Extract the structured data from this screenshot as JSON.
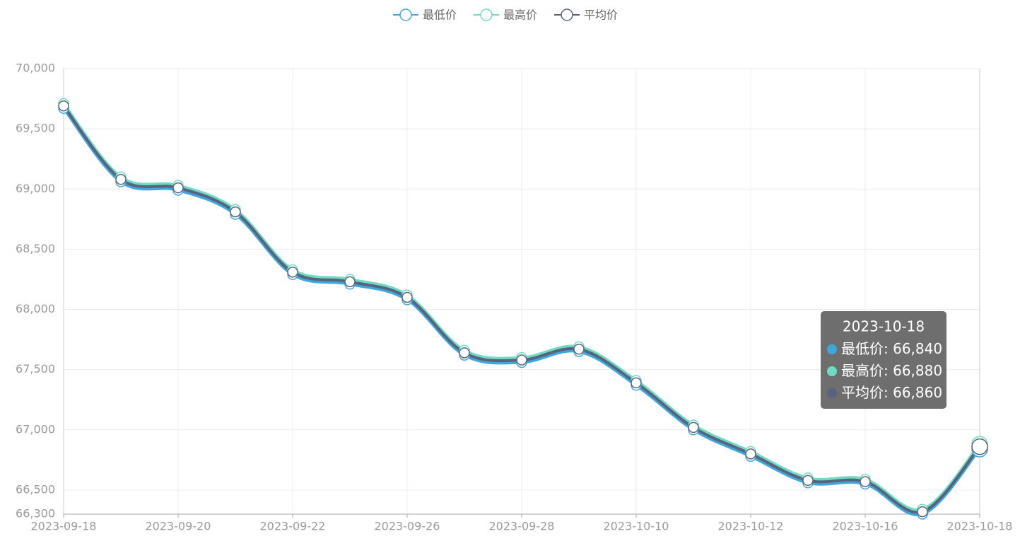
{
  "chart_data": {
    "type": "line",
    "categories": [
      "2023-09-18",
      null,
      "2023-09-20",
      null,
      "2023-09-22",
      null,
      "2023-09-26",
      null,
      "2023-09-28",
      null,
      "2023-10-10",
      null,
      "2023-10-12",
      null,
      "2023-10-16",
      null,
      "2023-10-18"
    ],
    "series": [
      {
        "name": "最低价",
        "color": "#3fa7dc",
        "values": [
          69670,
          69060,
          68990,
          68790,
          68290,
          68210,
          68080,
          67620,
          67560,
          67650,
          67370,
          67000,
          66780,
          66560,
          66550,
          66300,
          66840
        ],
        "value_labels": [
          null,
          null,
          null,
          null,
          null,
          null,
          null,
          null,
          null,
          null,
          null,
          null,
          null,
          null,
          null,
          null,
          "66,840"
        ]
      },
      {
        "name": "最高价",
        "color": "#6fdcc0",
        "values": [
          69710,
          69100,
          69030,
          68830,
          68330,
          68250,
          68120,
          67660,
          67600,
          67690,
          67410,
          67040,
          66820,
          66600,
          66590,
          66340,
          66880
        ],
        "value_labels": [
          null,
          null,
          null,
          null,
          null,
          null,
          null,
          null,
          null,
          null,
          null,
          null,
          null,
          null,
          null,
          null,
          "66,880"
        ]
      },
      {
        "name": "平均价",
        "color": "#58637f",
        "values": [
          69690,
          69080,
          69010,
          68810,
          68310,
          68230,
          68100,
          67640,
          67580,
          67670,
          67390,
          67020,
          66800,
          66580,
          66570,
          66320,
          66860
        ],
        "value_labels": [
          null,
          null,
          null,
          null,
          null,
          null,
          null,
          null,
          null,
          null,
          null,
          null,
          null,
          null,
          null,
          null,
          "66,860"
        ]
      }
    ],
    "ylim": [
      66300,
      70000
    ],
    "yticks": [
      {
        "value": 66300,
        "label": "66,300"
      },
      {
        "value": 66500,
        "label": "66,500"
      },
      {
        "value": 67000,
        "label": "67,000"
      },
      {
        "value": 67500,
        "label": "67,500"
      },
      {
        "value": 68000,
        "label": "68,000"
      },
      {
        "value": 68500,
        "label": "68,500"
      },
      {
        "value": 69000,
        "label": "69,000"
      },
      {
        "value": 69500,
        "label": "69,500"
      },
      {
        "value": 70000,
        "label": "70,000"
      }
    ],
    "grid": true,
    "legend": "top",
    "smooth": true
  }
}
